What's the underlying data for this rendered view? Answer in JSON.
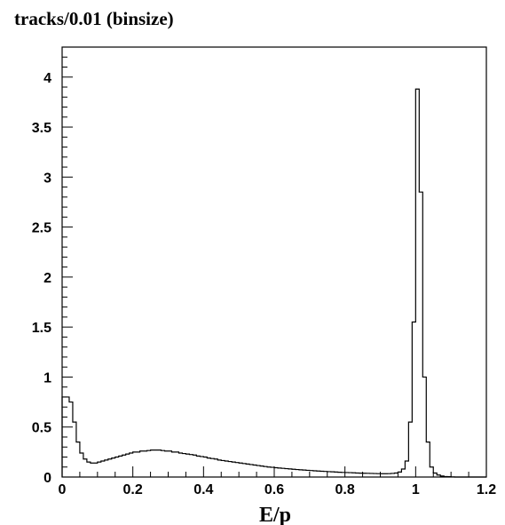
{
  "chart_data": {
    "type": "histogram",
    "title": "tracks/0.01 (binsize)",
    "xlabel": "E/p",
    "ylabel": "",
    "xlim": [
      0,
      1.2
    ],
    "ylim": [
      0,
      4.3
    ],
    "xticks": [
      {
        "v": 0,
        "label": "0"
      },
      {
        "v": 0.2,
        "label": "0.2"
      },
      {
        "v": 0.4,
        "label": "0.4"
      },
      {
        "v": 0.6,
        "label": "0.6"
      },
      {
        "v": 0.8,
        "label": "0.8"
      },
      {
        "v": 1.0,
        "label": "1"
      },
      {
        "v": 1.2,
        "label": "1.2"
      }
    ],
    "yticks": [
      {
        "v": 0,
        "label": "0"
      },
      {
        "v": 0.5,
        "label": "0.5"
      },
      {
        "v": 1.0,
        "label": "1"
      },
      {
        "v": 1.5,
        "label": "1.5"
      },
      {
        "v": 2.0,
        "label": "2"
      },
      {
        "v": 2.5,
        "label": "2.5"
      },
      {
        "v": 3.0,
        "label": "3"
      },
      {
        "v": 3.5,
        "label": "3.5"
      },
      {
        "v": 4.0,
        "label": "4"
      }
    ],
    "bin_width": 0.01,
    "bin_start": 0,
    "values": [
      0.8,
      0.8,
      0.75,
      0.55,
      0.35,
      0.24,
      0.18,
      0.15,
      0.14,
      0.14,
      0.15,
      0.16,
      0.17,
      0.18,
      0.19,
      0.2,
      0.21,
      0.22,
      0.23,
      0.24,
      0.25,
      0.25,
      0.26,
      0.26,
      0.265,
      0.27,
      0.27,
      0.27,
      0.265,
      0.26,
      0.26,
      0.25,
      0.25,
      0.24,
      0.235,
      0.23,
      0.225,
      0.22,
      0.21,
      0.205,
      0.2,
      0.19,
      0.185,
      0.18,
      0.17,
      0.165,
      0.16,
      0.155,
      0.15,
      0.145,
      0.14,
      0.135,
      0.13,
      0.125,
      0.12,
      0.115,
      0.11,
      0.105,
      0.1,
      0.097,
      0.093,
      0.09,
      0.087,
      0.084,
      0.081,
      0.078,
      0.075,
      0.072,
      0.07,
      0.067,
      0.065,
      0.062,
      0.06,
      0.058,
      0.056,
      0.054,
      0.052,
      0.05,
      0.048,
      0.046,
      0.045,
      0.044,
      0.042,
      0.04,
      0.039,
      0.038,
      0.037,
      0.036,
      0.035,
      0.034,
      0.033,
      0.033,
      0.034,
      0.036,
      0.04,
      0.05,
      0.08,
      0.16,
      0.55,
      1.55,
      3.88,
      2.85,
      1.0,
      0.35,
      0.1,
      0.04,
      0.02,
      0.01,
      0.005,
      0.003,
      0.001,
      0,
      0,
      0,
      0,
      0,
      0,
      0,
      0,
      0
    ]
  }
}
